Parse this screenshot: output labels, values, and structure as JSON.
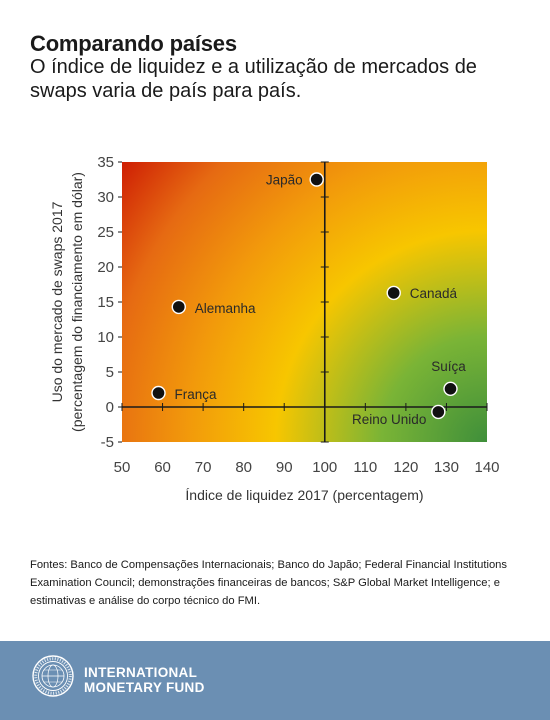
{
  "header": {
    "title": "Comparando países",
    "subtitle": "O índice de liquidez e a utilização de mercados de swaps varia de país para país."
  },
  "chart_data": {
    "type": "scatter",
    "title": "",
    "xlabel": "Índice de liquidez 2017 (percentagem)",
    "ylabel_line1": "Uso do mercado de swaps 2017",
    "ylabel_line2": "(percentagem do financiamento em dólar)",
    "xlim": [
      50,
      140
    ],
    "ylim": [
      -5,
      35
    ],
    "x_ticks": [
      50,
      60,
      70,
      80,
      90,
      100,
      110,
      120,
      130,
      140
    ],
    "y_ticks": [
      -5,
      0,
      5,
      10,
      15,
      20,
      25,
      30,
      35
    ],
    "divider_x": 100,
    "divider_y": 0,
    "background": "quadrant gradient: red (top-left) to orange/yellow to green (bottom-right)",
    "colors": {
      "red": "#c60000",
      "orange": "#ea7a08",
      "yellow": "#f9c600",
      "green": "#4f9a3a",
      "marker": "#111111"
    },
    "points": [
      {
        "label": "Japão",
        "x": 98,
        "y": 32.5
      },
      {
        "label": "Canadá",
        "x": 117,
        "y": 16.3
      },
      {
        "label": "Alemanha",
        "x": 64,
        "y": 14.3
      },
      {
        "label": "Suíça",
        "x": 131,
        "y": 2.6
      },
      {
        "label": "França",
        "x": 59,
        "y": 2.0
      },
      {
        "label": "Reino Unido",
        "x": 128,
        "y": -0.7
      }
    ]
  },
  "source": {
    "text": "Fontes: Banco de Compensações Internacionais; Banco do Japão; Federal Financial Institutions Examination Council; demonstrações financeiras de bancos; S&P Global Market Intelligence; e estimativas e análise do corpo técnico do FMI."
  },
  "footer": {
    "org_line1": "INTERNATIONAL",
    "org_line2": "MONETARY FUND",
    "logo_icon": "imf-seal-icon"
  }
}
